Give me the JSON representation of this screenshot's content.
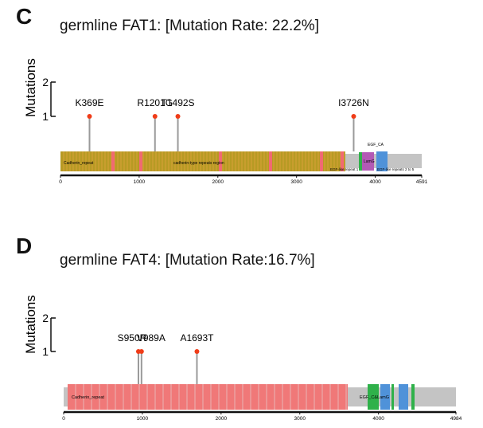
{
  "panels": [
    {
      "id": "C",
      "title": "germline FAT1: [Mutation Rate: 22.2%]",
      "y_axis": {
        "label": "Mutations",
        "ticks": [
          "2",
          "1"
        ]
      },
      "protein_length": 4591,
      "axis_ticks": [
        "0",
        "1000",
        "2000",
        "3000",
        "4000",
        "4591"
      ],
      "mutations": [
        {
          "label": "K369E",
          "position": 369,
          "count": 1
        },
        {
          "label": "R1201G",
          "position": 1201,
          "count": 1
        },
        {
          "label": "T1492S",
          "position": 1492,
          "count": 1
        },
        {
          "label": "I3726N",
          "position": 3726,
          "count": 1
        }
      ],
      "domain_labels": {
        "cadherin_repeat": "Cadherin_repeat",
        "cadherin_region": "cadherin-type repeats region",
        "egf_like_1": "EGF-like repeat 1",
        "lamg": "LamG",
        "egf_ca": "EGF_CA",
        "egf_like_2_5": "EGF-like repeats 2 to 5"
      },
      "colors": {
        "cadherin": "#b79a24",
        "stripe": "#f06a72",
        "backbone": "#c4c4c4",
        "lamg": "#b35ab5",
        "egf": "#4f92d9",
        "green": "#2fb14a",
        "marker": "#f03c18"
      }
    },
    {
      "id": "D",
      "title": "germline FAT4: [Mutation Rate:16.7%]",
      "y_axis": {
        "label": "Mutations",
        "ticks": [
          "2",
          "1"
        ]
      },
      "protein_length": 4984,
      "axis_ticks": [
        "0",
        "1000",
        "2000",
        "3000",
        "4000",
        "4984"
      ],
      "mutations": [
        {
          "label": "S950R",
          "position": 950,
          "count": 1
        },
        {
          "label": "V989A",
          "position": 989,
          "count": 1
        },
        {
          "label": "A1693T",
          "position": 1693,
          "count": 1
        }
      ],
      "domain_labels": {
        "cadherin_repeat": "Cadherin_repeat",
        "egf_lamg": "EGF_C&LamG"
      },
      "colors": {
        "cadherin": "#f07878",
        "backbone": "#c4c4c4",
        "egf": "#4f92d9",
        "green": "#2fb14a",
        "marker": "#f03c18"
      }
    }
  ]
}
